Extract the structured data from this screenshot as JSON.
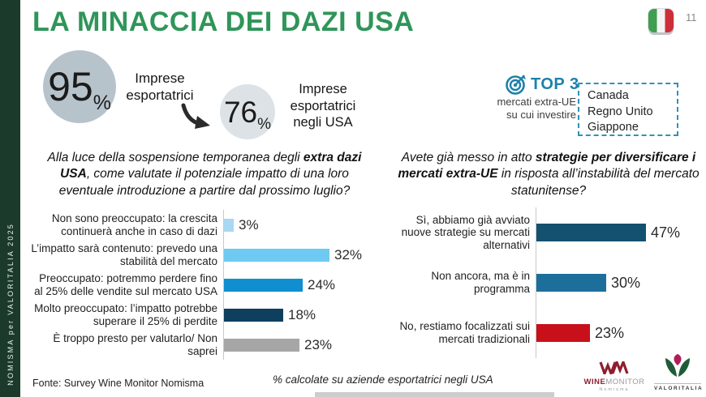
{
  "slide": {
    "title": "LA MINACCIA DEI DAZI USA",
    "page_number": "11",
    "sidebar_text": "NOMISMA per VALORITALIA 2025",
    "accent_green": "#2f9559",
    "sidebar_green": "#1c3a2b",
    "top3_teal": "#1f81aa"
  },
  "stats": {
    "exporters": {
      "value": "95",
      "unit": "%",
      "label": "Imprese esportatrici"
    },
    "usa_exporters": {
      "value": "76",
      "unit": "%",
      "label": "Imprese esportatrici negli USA"
    }
  },
  "top3": {
    "title": "TOP 3",
    "subtitle_line1": "mercati extra-UE",
    "subtitle_line2": "su cui investire",
    "items": [
      "Canada",
      "Regno Unito",
      "Giappone"
    ]
  },
  "questions": {
    "left": {
      "pre": "Alla luce della sospensione temporanea degli ",
      "bold": "extra dazi USA",
      "post": ", come valutate il potenziale impatto di una loro eventuale introduzione a partire dal prossimo luglio?"
    },
    "right": {
      "pre": "Avete già messo in atto ",
      "bold": "strategie per diversificare i mercati extra-UE",
      "post": " in risposta all’instabilità del mercato statunitense?"
    }
  },
  "chart_data": [
    {
      "type": "bar",
      "orientation": "horizontal",
      "title": "Alla luce della sospensione temporanea degli extra dazi USA, come valutate il potenziale impatto di una loro eventuale introduzione a partire dal prossimo luglio?",
      "categories": [
        "Non sono preoccupato: la crescita continuerà anche in caso di dazi",
        "L’impatto sarà contenuto: prevedo una stabilità del mercato",
        "Preoccupato: potremmo perdere fino al 25% delle vendite sul mercato USA",
        "Molto preoccupato: l’impatto potrebbe superare il 25% di perdite",
        "È troppo presto per valutarlo/ Non saprei"
      ],
      "values": [
        3,
        32,
        24,
        18,
        23
      ],
      "labels": [
        "3%",
        "32%",
        "24%",
        "18%",
        "23%"
      ],
      "colors": [
        "#a9d8f2",
        "#6fcaf3",
        "#0f8fd0",
        "#0f3f5e",
        "#a6a6a6"
      ],
      "value_suffix": "%",
      "xlim": [
        0,
        35
      ],
      "grid": false,
      "legend": false
    },
    {
      "type": "bar",
      "orientation": "horizontal",
      "title": "Avete già messo in atto strategie per diversificare i mercati extra-UE in risposta all’instabilità del mercato statunitense?",
      "categories": [
        "Sì, abbiamo già avviato nuove strategie su mercati alternativi",
        "Non ancora, ma è in programma",
        "No, restiamo focalizzati sui mercati tradizionali"
      ],
      "values": [
        47,
        30,
        23
      ],
      "labels": [
        "47%",
        "30%",
        "23%"
      ],
      "colors": [
        "#14516f",
        "#1d6f9b",
        "#c8101a"
      ],
      "value_suffix": "%",
      "xlim": [
        0,
        55
      ],
      "grid": false,
      "legend": false
    }
  ],
  "footer": {
    "source": "Fonte: Survey Wine Monitor Nomisma",
    "note": "% calcolate su aziende esportatrici negli USA"
  },
  "logos": {
    "winemonitor": {
      "line1_strong": "WINE",
      "line1_light": "MONITOR",
      "line2": "Nomisma"
    },
    "valoritalia": {
      "label": "VALORITALIA"
    }
  }
}
